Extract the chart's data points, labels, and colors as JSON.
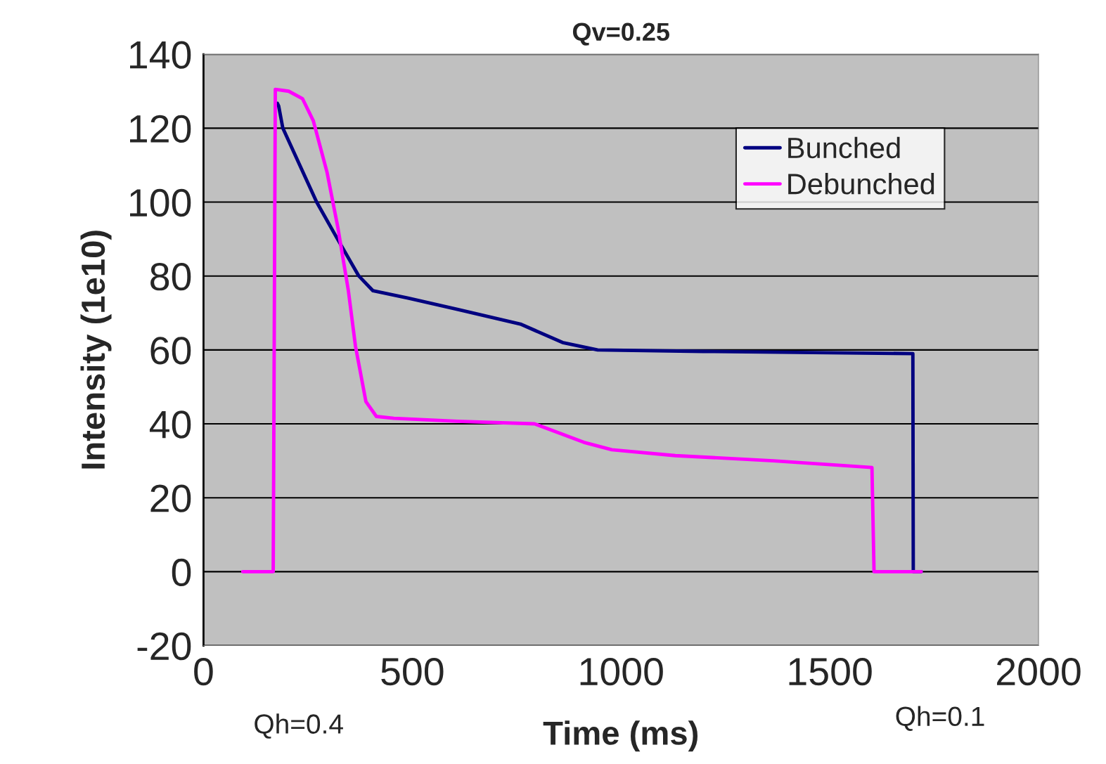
{
  "chart_data": {
    "type": "line",
    "title": "Qv=0.25",
    "xlabel": "Time (ms)",
    "ylabel": "Intensity (1e10)",
    "annotations": [
      "Qh=0.4",
      "Qh=0.1"
    ],
    "xlim": [
      0,
      2000
    ],
    "xticks": [
      0,
      500,
      1000,
      1500,
      2000
    ],
    "ylim": [
      -20,
      140
    ],
    "yticks": [
      -20,
      0,
      20,
      40,
      60,
      80,
      100,
      120,
      140
    ],
    "grid": "y",
    "legend": "top right",
    "line_style": "solid",
    "marker": "none",
    "series": [
      {
        "name": "Bunched",
        "color": "#000080",
        "x": [
          177,
          180,
          190,
          271,
          321,
          372,
          406,
          490,
          608,
          759,
          860,
          944,
          1197,
          1699,
          1700,
          1719
        ],
        "values": [
          126.7,
          126,
          120,
          100,
          90,
          80,
          76,
          74,
          71,
          67,
          62,
          60,
          59.6,
          59,
          0,
          0
        ]
      },
      {
        "name": "Debunched",
        "color": "#ff00ff",
        "x": [
          94,
          167,
          172,
          204,
          237,
          263,
          296,
          322,
          347,
          364,
          389,
          414,
          456,
          608,
          793,
          911,
          978,
          1130,
          1365,
          1601,
          1606,
          1719
        ],
        "values": [
          0,
          0,
          130.5,
          130,
          128,
          122,
          108,
          93,
          76,
          61,
          46,
          42,
          41.5,
          40.7,
          40,
          35,
          33,
          31.4,
          30,
          28.2,
          0,
          0
        ]
      }
    ]
  }
}
